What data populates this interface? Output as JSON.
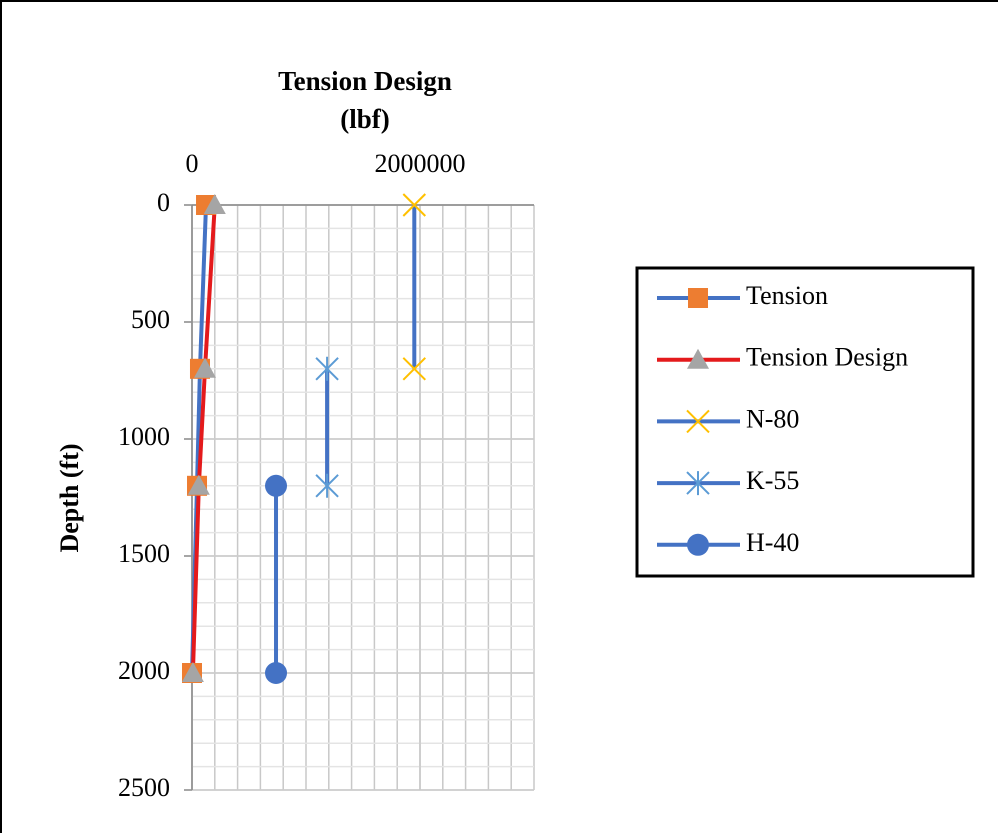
{
  "chart_data": {
    "type": "line",
    "x_label": "Tension Design (lbf)",
    "y_label": "Depth (ft)",
    "xlim": [
      0,
      3000000
    ],
    "xticks": [
      0,
      2000000
    ],
    "xminor": 200000,
    "ylim": [
      0,
      2500
    ],
    "yticks": [
      0,
      500,
      1000,
      1500,
      2000,
      2500
    ],
    "yminor": 100,
    "y_inverted": true,
    "grid": true,
    "legend": "right",
    "series": [
      {
        "name": "Tension",
        "color": "#4472c4",
        "marker": "square",
        "marker_color": "#ed7d31",
        "x": [
          123000,
          70000,
          44000,
          0
        ],
        "values": [
          0,
          700,
          1200,
          2000
        ]
      },
      {
        "name": "Tension Design",
        "color": "#e41a1c",
        "marker": "triangle",
        "marker_color": "#a5a5a5",
        "x": [
          200000,
          114000,
          60000,
          8000
        ],
        "values": [
          0,
          700,
          1200,
          2000
        ]
      },
      {
        "name": "N-80",
        "color": "#4472c4",
        "marker": "x",
        "marker_color": "#ffc000",
        "x": [
          1950000,
          1950000
        ],
        "values": [
          0,
          700
        ]
      },
      {
        "name": "K-55",
        "color": "#4472c4",
        "marker": "star",
        "marker_color": "#5b9bd5",
        "x": [
          1185000,
          1185000
        ],
        "values": [
          700,
          1200
        ]
      },
      {
        "name": "H-40",
        "color": "#4472c4",
        "marker": "circle",
        "marker_color": "#4472c4",
        "x": [
          737000,
          737000
        ],
        "values": [
          1200,
          2000
        ]
      }
    ]
  }
}
